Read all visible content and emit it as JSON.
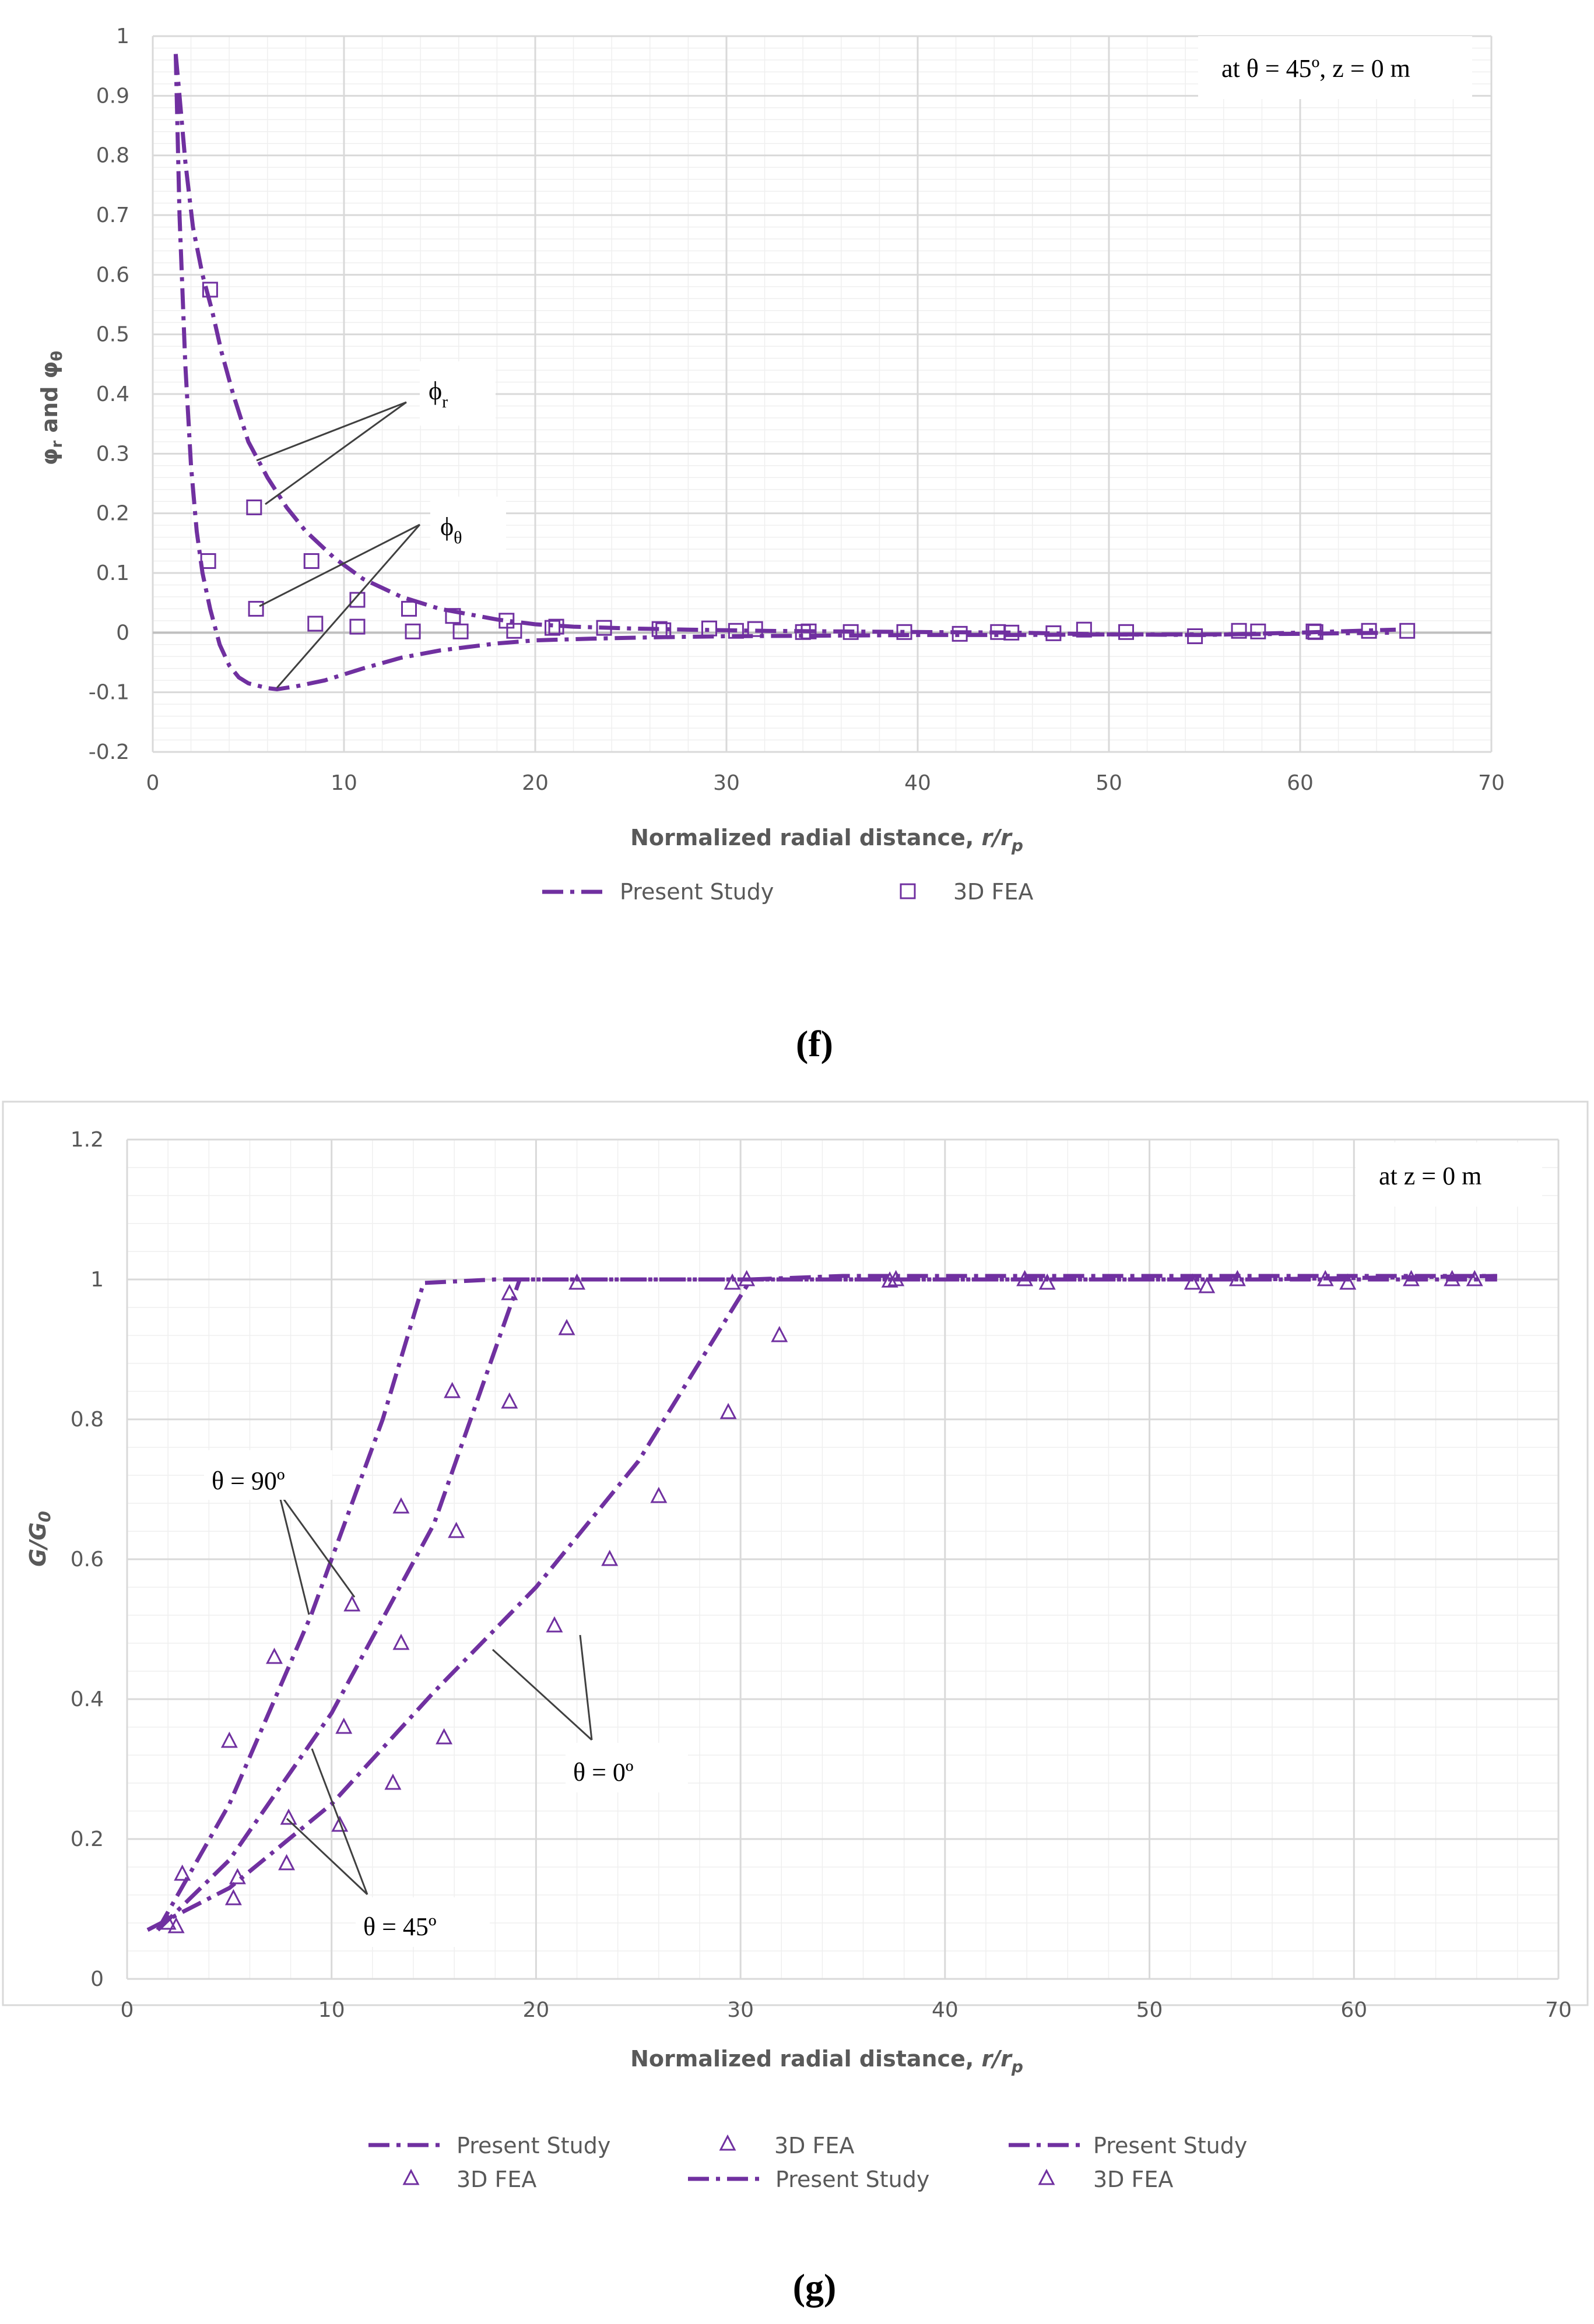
{
  "chart_data": [
    {
      "type": "scatter",
      "panel_label": "(f)",
      "annotation": "at θ = 45º, z = 0 m",
      "xlabel": "Normalized radial distance, r/rp",
      "ylabel": "φr and φθ",
      "xlim": [
        0,
        70
      ],
      "ylim": [
        -0.2,
        1
      ],
      "xticks": [
        "0",
        "10",
        "20",
        "30",
        "40",
        "50",
        "60",
        "70"
      ],
      "yticks": [
        "-0.2",
        "-0.1",
        "0",
        "0.1",
        "0.2",
        "0.3",
        "0.4",
        "0.5",
        "0.6",
        "0.7",
        "0.8",
        "0.9",
        "1"
      ],
      "labels": {
        "phi_r": "ϕr",
        "phi_theta": "ϕθ"
      },
      "legend": [
        "Present Study",
        "3D FEA"
      ],
      "series": [
        {
          "name": "Present Study (φr)",
          "style": "dashdot",
          "x": [
            1.2,
            1.4,
            1.7,
            2.1,
            2.6,
            3.1,
            3.6,
            4.2,
            5.0,
            6.0,
            7.0,
            8.0,
            9.5,
            11,
            13,
            15,
            18,
            20,
            22,
            25,
            28,
            32,
            36,
            40,
            45,
            50,
            55,
            60,
            65
          ],
          "y": [
            0.97,
            0.9,
            0.79,
            0.68,
            0.6,
            0.54,
            0.47,
            0.4,
            0.32,
            0.26,
            0.21,
            0.17,
            0.125,
            0.09,
            0.06,
            0.04,
            0.022,
            0.014,
            0.01,
            0.007,
            0.005,
            0.003,
            0.002,
            0.001,
            0.0,
            -0.003,
            -0.004,
            0.0,
            0.005
          ]
        },
        {
          "name": "Present Study (φθ)",
          "style": "dashdot",
          "x": [
            1.2,
            1.4,
            1.7,
            2.0,
            2.3,
            2.6,
            3.0,
            3.5,
            4.0,
            4.5,
            5.0,
            6.0,
            6.5,
            7.5,
            9.0,
            11,
            13,
            15,
            18,
            20,
            23,
            26,
            30,
            35,
            40,
            45,
            50,
            55,
            60,
            65
          ],
          "y": [
            0.97,
            0.7,
            0.45,
            0.28,
            0.17,
            0.1,
            0.04,
            -0.02,
            -0.055,
            -0.075,
            -0.085,
            -0.093,
            -0.095,
            -0.09,
            -0.08,
            -0.06,
            -0.042,
            -0.03,
            -0.018,
            -0.013,
            -0.01,
            -0.008,
            -0.006,
            -0.005,
            -0.004,
            -0.004,
            -0.003,
            -0.003,
            -0.002,
            0.0
          ]
        },
        {
          "name": "3D FEA (φr)",
          "marker": "square",
          "x": [
            3.0,
            5.3,
            8.3,
            10.7,
            13.4,
            15.7,
            18.5,
            21.1,
            23.6,
            26.5,
            29.1,
            31.5,
            34.3,
            39.3,
            44.9,
            50.9,
            57.8,
            60.7,
            63.6,
            65.6
          ],
          "y": [
            0.575,
            0.21,
            0.12,
            0.055,
            0.04,
            0.028,
            0.02,
            0.01,
            0.008,
            0.006,
            0.007,
            0.006,
            0.002,
            0.001,
            0.0,
            0.001,
            0.002,
            0.002,
            0.003,
            0.003
          ]
        },
        {
          "name": "3D FEA (φθ)",
          "marker": "square",
          "x": [
            2.9,
            5.4,
            8.5,
            10.7,
            13.6,
            16.1,
            18.9,
            20.9,
            26.7,
            30.5,
            34.0,
            36.5,
            42.2,
            44.2,
            47.1,
            48.7,
            54.5,
            56.8,
            60.8
          ],
          "y": [
            0.12,
            0.04,
            0.015,
            0.01,
            0.002,
            0.002,
            0.003,
            0.008,
            0.004,
            0.003,
            0.001,
            0.001,
            -0.002,
            0.001,
            -0.001,
            0.005,
            -0.006,
            0.003,
            0.001
          ]
        }
      ]
    },
    {
      "type": "scatter",
      "panel_label": "(g)",
      "annotation": "at z = 0 m",
      "xlabel": "Normalized radial distance, r/rp",
      "ylabel": "G/G0",
      "xlim": [
        0,
        70
      ],
      "ylim": [
        0,
        1.2
      ],
      "xticks": [
        "0",
        "10",
        "20",
        "30",
        "40",
        "50",
        "60",
        "70"
      ],
      "yticks": [
        "0",
        "0.2",
        "0.4",
        "0.6",
        "0.8",
        "1",
        "1.2"
      ],
      "labels": {
        "theta90": "θ = 90º",
        "theta0": "θ = 0º",
        "theta45": "θ = 45º"
      },
      "legend": [
        "Present Study",
        "3D FEA",
        "Present Study",
        "3D FEA",
        "Present Study",
        "3D FEA"
      ],
      "series": [
        {
          "name": "Present Study (θ = 90º)",
          "style": "dashdot",
          "x": [
            1.5,
            5,
            9,
            12.5,
            14.5,
            18,
            25,
            35,
            45,
            55,
            67
          ],
          "y": [
            0.07,
            0.25,
            0.52,
            0.8,
            0.995,
            1.0,
            1.0,
            1.0,
            1.0,
            1.0,
            1.005
          ]
        },
        {
          "name": "Present Study (θ = 45º)",
          "style": "dashdot",
          "x": [
            1.5,
            5,
            10,
            15,
            19.2,
            25,
            35,
            45,
            55,
            67
          ],
          "y": [
            0.07,
            0.17,
            0.38,
            0.65,
            1.0,
            1.0,
            1.0,
            1.0,
            1.0,
            1.0
          ]
        },
        {
          "name": "Present Study (θ = 0º)",
          "style": "dashdot",
          "x": [
            1.0,
            5,
            10,
            15,
            20,
            25,
            30.5,
            35,
            40,
            45,
            50,
            55,
            60,
            67
          ],
          "y": [
            0.07,
            0.13,
            0.25,
            0.41,
            0.56,
            0.74,
            1.0,
            1.005,
            1.005,
            1.005,
            1.005,
            1.005,
            1.005,
            1.005
          ]
        },
        {
          "name": "3D FEA (θ = 90º)",
          "marker": "triangle",
          "x": [
            2.0,
            2.7,
            5.0,
            7.2,
            11.0,
            13.4,
            15.9,
            18.7,
            22.0
          ],
          "y": [
            0.08,
            0.15,
            0.34,
            0.46,
            0.535,
            0.675,
            0.84,
            0.98,
            0.995
          ]
        },
        {
          "name": "3D FEA (θ = 45º)",
          "marker": "triangle",
          "x": [
            2.4,
            5.4,
            7.9,
            10.6,
            13.4,
            16.1,
            18.7,
            21.5
          ],
          "y": [
            0.075,
            0.145,
            0.23,
            0.36,
            0.48,
            0.64,
            0.825,
            0.93
          ]
        },
        {
          "name": "3D FEA (θ = 0º)",
          "marker": "triangle",
          "x": [
            5.2,
            7.8,
            10.4,
            13.0,
            15.5,
            20.9,
            23.6,
            26.0,
            29.4,
            31.9,
            29.6,
            37.3,
            43.9,
            45.0,
            52.1,
            52.8,
            54.3,
            59.7,
            62.8,
            64.8,
            65.9,
            58.6,
            37.6,
            30.3
          ],
          "y": [
            0.115,
            0.165,
            0.22,
            0.28,
            0.345,
            0.505,
            0.6,
            0.69,
            0.81,
            0.92,
            0.995,
            0.998,
            1.0,
            0.995,
            0.995,
            0.99,
            1.0,
            0.995,
            1.0,
            1.0,
            1.0,
            1.0,
            1.0,
            1.0
          ]
        }
      ]
    }
  ]
}
